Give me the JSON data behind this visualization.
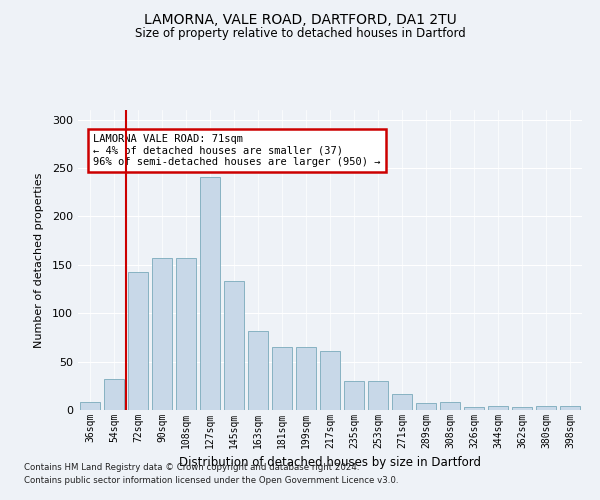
{
  "title_line1": "LAMORNA, VALE ROAD, DARTFORD, DA1 2TU",
  "title_line2": "Size of property relative to detached houses in Dartford",
  "xlabel": "Distribution of detached houses by size in Dartford",
  "ylabel": "Number of detached properties",
  "categories": [
    "36sqm",
    "54sqm",
    "72sqm",
    "90sqm",
    "108sqm",
    "127sqm",
    "145sqm",
    "163sqm",
    "181sqm",
    "199sqm",
    "217sqm",
    "235sqm",
    "253sqm",
    "271sqm",
    "289sqm",
    "308sqm",
    "326sqm",
    "344sqm",
    "362sqm",
    "380sqm",
    "398sqm"
  ],
  "values": [
    8,
    32,
    143,
    157,
    157,
    241,
    133,
    82,
    65,
    65,
    61,
    30,
    30,
    17,
    7,
    8,
    3,
    4,
    3,
    4,
    4
  ],
  "bar_color": "#c8d8e8",
  "bar_edge_color": "#7aaabb",
  "annotation_text": "LAMORNA VALE ROAD: 71sqm\n← 4% of detached houses are smaller (37)\n96% of semi-detached houses are larger (950) →",
  "annotation_box_color": "#ffffff",
  "annotation_box_edge_color": "#cc0000",
  "vline_color": "#cc0000",
  "vline_x": 1.5,
  "ylim": [
    0,
    310
  ],
  "yticks": [
    0,
    50,
    100,
    150,
    200,
    250,
    300
  ],
  "background_color": "#eef2f7",
  "footer_line1": "Contains HM Land Registry data © Crown copyright and database right 2024.",
  "footer_line2": "Contains public sector information licensed under the Open Government Licence v3.0."
}
